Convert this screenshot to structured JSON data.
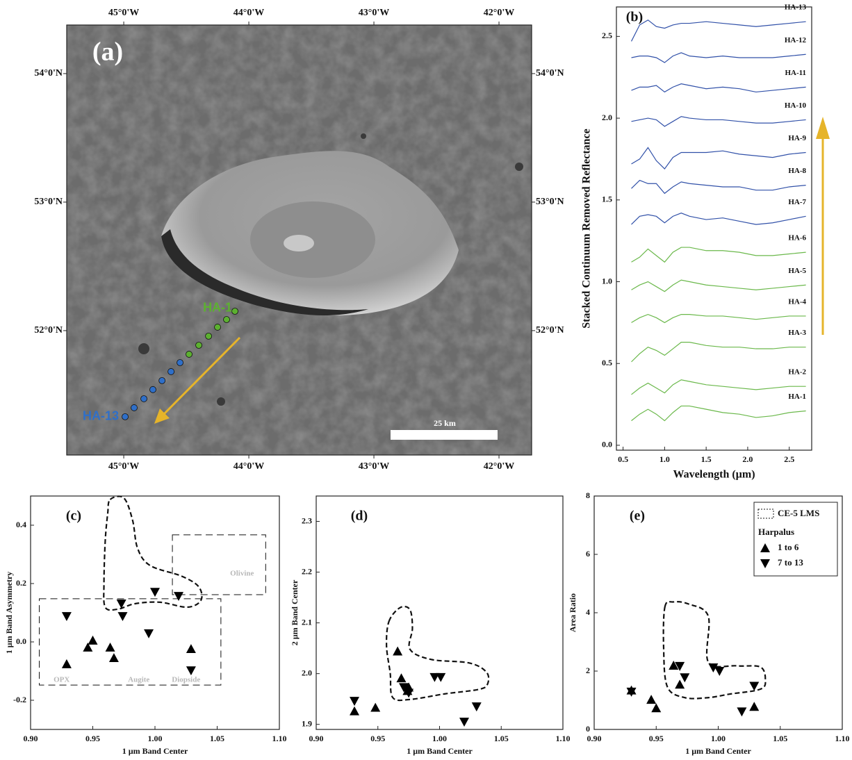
{
  "chart_data": [
    {
      "type": "map",
      "title": "(a)",
      "scale_label": "25 km",
      "xlim": [
        -45.456,
        -41.739
      ],
      "ylim": [
        51.032,
        54.378
      ],
      "xticks": [
        {
          "value": -45,
          "label": "45°0'W"
        },
        {
          "value": -44,
          "label": "44°0'W"
        },
        {
          "value": -43,
          "label": "43°0'W"
        },
        {
          "value": -42,
          "label": "42°0'W"
        }
      ],
      "yticks": [
        {
          "value": 52,
          "label": "52°0'N"
        },
        {
          "value": 53,
          "label": "53°0'N"
        },
        {
          "value": 54,
          "label": "54°0'N"
        }
      ],
      "labels": [
        "HA-1",
        "HA-13"
      ],
      "series": [
        {
          "color": "#5cb030",
          "x": [
            -44.111,
            -44.178,
            -44.25,
            -44.322,
            -44.4,
            -44.478
          ],
          "y": [
            52.151,
            52.086,
            52.027,
            51.957,
            51.886,
            51.816
          ]
        },
        {
          "color": "#2f6fc8",
          "x": [
            -44.55,
            -44.622,
            -44.694,
            -44.767,
            -44.839,
            -44.917,
            -44.989
          ],
          "y": [
            51.751,
            51.681,
            51.611,
            51.541,
            51.47,
            51.4,
            51.33
          ]
        }
      ]
    },
    {
      "type": "line",
      "title": "(b)",
      "xlabel": "Wavelength (µm)",
      "ylabel": "Stacked Continuum Removed Reflectance",
      "xlim": [
        0.42,
        2.77
      ],
      "ylim": [
        -0.03,
        2.68
      ],
      "xticks": [
        0.5,
        {
          "value": 1.0,
          "label": "1.0"
        },
        1.5,
        {
          "value": 2.0,
          "label": "2.0"
        },
        2.5
      ],
      "yticks": [
        {
          "value": 0.0,
          "label": "0.0"
        },
        0.5,
        {
          "value": 1.0,
          "label": "1.0"
        },
        1.5,
        {
          "value": 2.0,
          "label": "2.0"
        },
        2.5
      ],
      "x": [
        0.6,
        0.7,
        0.8,
        0.9,
        1.0,
        1.1,
        1.2,
        1.3,
        1.5,
        1.7,
        1.9,
        2.1,
        2.3,
        2.5,
        2.7
      ],
      "series": [
        {
          "name": "HA-1",
          "color": "#6ab84a",
          "values": [
            0.15,
            0.19,
            0.22,
            0.19,
            0.15,
            0.2,
            0.24,
            0.24,
            0.22,
            0.2,
            0.19,
            0.17,
            0.18,
            0.2,
            0.21
          ]
        },
        {
          "name": "HA-2",
          "color": "#6ab84a",
          "values": [
            0.31,
            0.35,
            0.38,
            0.35,
            0.32,
            0.37,
            0.4,
            0.39,
            0.37,
            0.36,
            0.35,
            0.34,
            0.35,
            0.36,
            0.36
          ]
        },
        {
          "name": "HA-3",
          "color": "#6ab84a",
          "values": [
            0.51,
            0.56,
            0.6,
            0.58,
            0.55,
            0.59,
            0.63,
            0.63,
            0.61,
            0.6,
            0.6,
            0.59,
            0.59,
            0.6,
            0.6
          ]
        },
        {
          "name": "HA-4",
          "color": "#6ab84a",
          "values": [
            0.75,
            0.78,
            0.8,
            0.78,
            0.75,
            0.78,
            0.8,
            0.8,
            0.79,
            0.79,
            0.78,
            0.77,
            0.78,
            0.79,
            0.79
          ]
        },
        {
          "name": "HA-5",
          "color": "#6ab84a",
          "values": [
            0.95,
            0.98,
            1.0,
            0.97,
            0.94,
            0.98,
            1.01,
            1.0,
            0.98,
            0.97,
            0.96,
            0.95,
            0.96,
            0.97,
            0.98
          ]
        },
        {
          "name": "HA-6",
          "color": "#6ab84a",
          "values": [
            1.12,
            1.15,
            1.2,
            1.16,
            1.12,
            1.18,
            1.21,
            1.21,
            1.19,
            1.19,
            1.18,
            1.16,
            1.16,
            1.17,
            1.18
          ]
        },
        {
          "name": "HA-7",
          "color": "#3050a8",
          "values": [
            1.35,
            1.4,
            1.41,
            1.4,
            1.36,
            1.4,
            1.42,
            1.4,
            1.38,
            1.39,
            1.37,
            1.35,
            1.36,
            1.38,
            1.4
          ]
        },
        {
          "name": "HA-8",
          "color": "#3050a8",
          "values": [
            1.57,
            1.62,
            1.6,
            1.6,
            1.54,
            1.58,
            1.61,
            1.6,
            1.59,
            1.58,
            1.58,
            1.56,
            1.56,
            1.58,
            1.59
          ]
        },
        {
          "name": "HA-9",
          "color": "#3050a8",
          "values": [
            1.72,
            1.75,
            1.82,
            1.74,
            1.69,
            1.76,
            1.79,
            1.79,
            1.79,
            1.8,
            1.78,
            1.77,
            1.76,
            1.78,
            1.79
          ]
        },
        {
          "name": "HA-10",
          "color": "#3050a8",
          "values": [
            1.98,
            1.99,
            2.0,
            1.99,
            1.95,
            1.98,
            2.01,
            2.0,
            1.99,
            1.99,
            1.98,
            1.97,
            1.97,
            1.98,
            1.99
          ]
        },
        {
          "name": "HA-11",
          "color": "#3050a8",
          "values": [
            2.17,
            2.19,
            2.19,
            2.2,
            2.16,
            2.19,
            2.21,
            2.2,
            2.18,
            2.19,
            2.18,
            2.16,
            2.17,
            2.18,
            2.19
          ]
        },
        {
          "name": "HA-12",
          "color": "#3050a8",
          "values": [
            2.37,
            2.38,
            2.38,
            2.37,
            2.34,
            2.38,
            2.4,
            2.38,
            2.37,
            2.38,
            2.37,
            2.37,
            2.37,
            2.38,
            2.39
          ]
        },
        {
          "name": "HA-13",
          "color": "#3050a8",
          "values": [
            2.47,
            2.57,
            2.6,
            2.56,
            2.55,
            2.57,
            2.58,
            2.58,
            2.59,
            2.58,
            2.57,
            2.56,
            2.57,
            2.58,
            2.59
          ]
        }
      ]
    },
    {
      "type": "scatter",
      "title": "(c)",
      "xlabel": "1 µm Band Center",
      "ylabel": "1 µm Band Asymmetry",
      "xlim": [
        0.9,
        1.1
      ],
      "ylim": [
        -0.3,
        0.5
      ],
      "xticks": [
        {
          "value": 0.9,
          "label": "0.90"
        },
        0.95,
        {
          "value": 1.0,
          "label": "1.00"
        },
        1.05,
        {
          "value": 1.1,
          "label": "1.10"
        }
      ],
      "yticks": [
        -0.2,
        {
          "value": 0.0,
          "label": "0.0"
        },
        0.2,
        0.4
      ],
      "regions": [
        {
          "smooth": true,
          "x": [
            0.964,
            0.975,
            0.982,
            0.986,
            0.996,
            1.021,
            1.035,
            1.037,
            1.026,
            1.004,
            0.984,
            0.97,
            0.96,
            0.959,
            0.96,
            0.962
          ],
          "y": [
            0.488,
            0.493,
            0.417,
            0.321,
            0.262,
            0.226,
            0.19,
            0.143,
            0.119,
            0.136,
            0.131,
            0.112,
            0.119,
            0.202,
            0.345,
            0.44
          ]
        },
        {
          "x": [
            0.907,
            1.053,
            1.053,
            0.907
          ],
          "y": [
            0.148,
            0.148,
            -0.148,
            -0.148
          ]
        },
        {
          "x": [
            1.014,
            1.089,
            1.089,
            1.014
          ],
          "y": [
            0.367,
            0.367,
            0.162,
            0.162
          ]
        }
      ],
      "annotations": [
        {
          "text": "OPX",
          "x": 0.925,
          "y": -0.131
        },
        {
          "text": "Augite",
          "x": 0.987,
          "y": -0.131
        },
        {
          "text": "Diopside",
          "x": 1.025,
          "y": -0.131
        },
        {
          "text": "Olivine",
          "x": 1.07,
          "y": 0.233
        }
      ],
      "series": [
        {
          "marker": "triangle-up",
          "x": [
            0.929,
            0.946,
            0.95,
            0.964,
            0.967,
            1.029
          ],
          "y": [
            -0.076,
            -0.019,
            0.005,
            -0.019,
            -0.055,
            -0.024
          ]
        },
        {
          "marker": "triangle-down",
          "x": [
            0.929,
            0.973,
            0.974,
            0.995,
            1.0,
            1.019,
            1.029
          ],
          "y": [
            0.088,
            0.131,
            0.088,
            0.029,
            0.171,
            0.157,
            -0.098
          ]
        }
      ]
    },
    {
      "type": "scatter",
      "title": "(d)",
      "xlabel": "1 µm Band Center",
      "ylabel": "2 µm Band Center",
      "xlim": [
        0.9,
        1.1
      ],
      "ylim": [
        1.89,
        2.35
      ],
      "xticks": [
        {
          "value": 0.9,
          "label": "0.90"
        },
        0.95,
        {
          "value": 1.0,
          "label": "1.00"
        },
        1.05,
        {
          "value": 1.1,
          "label": "1.10"
        }
      ],
      "yticks": [
        1.9,
        {
          "value": 2.0,
          "label": "2.0"
        },
        2.1,
        2.2,
        2.3
      ],
      "regions": [
        {
          "smooth": true,
          "x": [
            0.959,
            0.968,
            0.976,
            0.978,
            0.976,
            0.993,
            1.024,
            1.038,
            1.039,
            1.032,
            1.004,
            0.976,
            0.962,
            0.96,
            0.957
          ],
          "y": [
            2.103,
            2.13,
            2.126,
            2.089,
            2.048,
            2.028,
            2.021,
            2.003,
            1.98,
            1.969,
            1.96,
            1.949,
            1.953,
            2.001,
            2.055
          ]
        }
      ],
      "series": [
        {
          "marker": "triangle-up",
          "x": [
            0.931,
            0.948,
            0.966,
            0.969,
            0.975,
            0.974
          ],
          "y": [
            1.926,
            1.933,
            2.044,
            1.991,
            1.973,
            1.966
          ]
        },
        {
          "marker": "triangle-down",
          "x": [
            0.931,
            0.975,
            0.971,
            0.996,
            1.001,
            1.02,
            1.03
          ],
          "y": [
            1.946,
            1.962,
            1.973,
            1.993,
            1.993,
            1.905,
            1.935
          ]
        }
      ]
    },
    {
      "type": "scatter",
      "title": "(e)",
      "xlabel": "1 µm Band Center",
      "ylabel": "Area Ratio",
      "xlim": [
        0.9,
        1.1
      ],
      "ylim": [
        0,
        8
      ],
      "xticks": [
        {
          "value": 0.9,
          "label": "0.90"
        },
        0.95,
        {
          "value": 1.0,
          "label": "1.00"
        },
        1.05,
        {
          "value": 1.1,
          "label": "1.10"
        }
      ],
      "yticks": [
        0,
        2,
        4,
        6,
        8
      ],
      "legend_title": "Harpalus",
      "regions": [
        {
          "name": "CE-5 LMS",
          "smooth": true,
          "x": [
            0.957,
            0.964,
            0.976,
            0.992,
            0.992,
            1.015,
            1.034,
            1.038,
            1.034,
            1.009,
            0.992,
            0.973,
            0.959,
            0.956
          ],
          "y": [
            4.2,
            4.37,
            4.3,
            3.88,
            2.31,
            2.18,
            2.14,
            1.7,
            1.38,
            1.21,
            1.09,
            1.09,
            1.46,
            2.79
          ]
        }
      ],
      "series": [
        {
          "name": "1 to 6",
          "marker": "triangle-up",
          "x": [
            0.93,
            0.946,
            0.95,
            0.964,
            0.969,
            1.029
          ],
          "y": [
            1.34,
            1.02,
            0.73,
            2.19,
            1.54,
            0.78
          ]
        },
        {
          "name": "7 to 13",
          "marker": "triangle-down",
          "x": [
            0.93,
            0.969,
            0.973,
            0.996,
            1.001,
            1.019,
            1.029
          ],
          "y": [
            1.29,
            2.17,
            1.78,
            2.12,
            2.0,
            0.61,
            1.49
          ]
        }
      ]
    }
  ]
}
